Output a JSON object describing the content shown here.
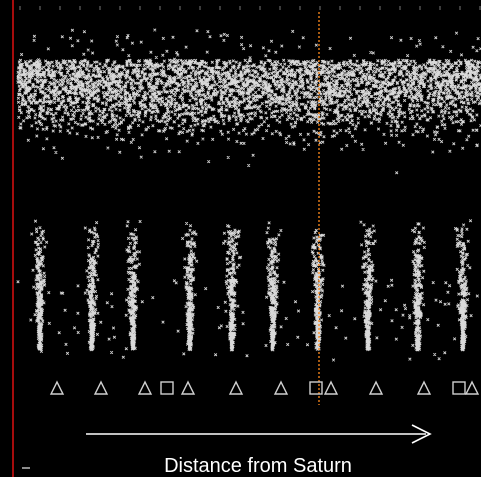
{
  "chart_data": {
    "type": "scatter",
    "xlabel": "Distance from Saturn",
    "xlabel_direction": "increasing to the right",
    "grid": false,
    "background": "#000000",
    "point_color": "#ffffff",
    "point_marker": "x",
    "reference_line_color": "#ff8a1c",
    "left_border_color": "#d01010",
    "marker_color": "#cfcfcf",
    "markers": [
      "triangle",
      "triangle",
      "triangle",
      "square",
      "triangle",
      "triangle",
      "triangle",
      "square",
      "triangle",
      "triangle",
      "triangle",
      "square",
      "triangle"
    ],
    "dense_clusters": 10
  }
}
